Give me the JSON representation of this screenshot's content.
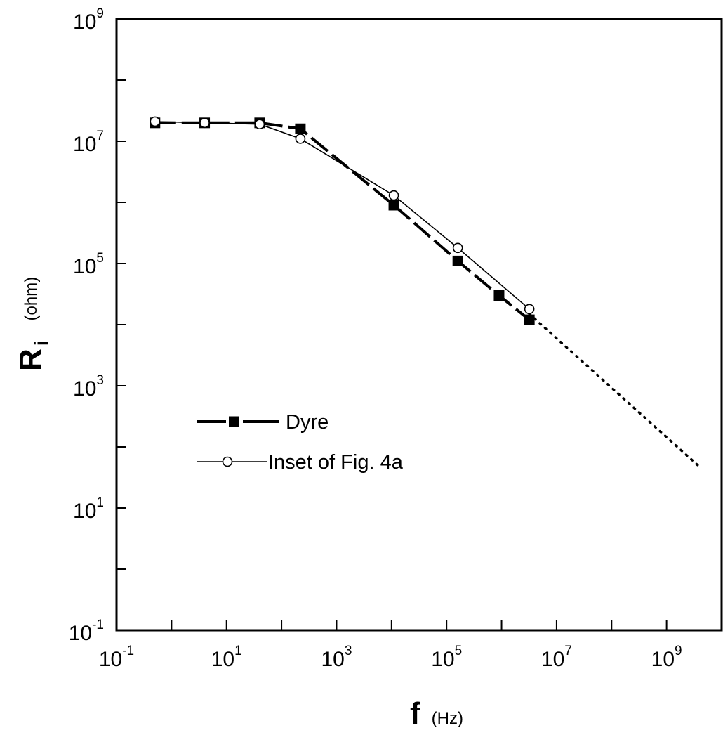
{
  "chart_data": {
    "type": "line",
    "title": "",
    "x_scale": "log",
    "y_scale": "log",
    "xlim": [
      0.1,
      10000000000
    ],
    "ylim": [
      0.1,
      1000000000
    ],
    "xlabel": {
      "main": "f",
      "unit": "(Hz)"
    },
    "ylabel": {
      "main": "R",
      "subscript": "i",
      "unit": "(ohm)"
    },
    "x_ticks": [
      {
        "base": "10",
        "exp": "-1",
        "value": 0.1
      },
      {
        "base": "10",
        "exp": "1",
        "value": 10
      },
      {
        "base": "10",
        "exp": "3",
        "value": 1000
      },
      {
        "base": "10",
        "exp": "5",
        "value": 100000
      },
      {
        "base": "10",
        "exp": "7",
        "value": 10000000
      },
      {
        "base": "10",
        "exp": "9",
        "value": 1000000000
      }
    ],
    "y_ticks": [
      {
        "base": "10",
        "exp": "-1",
        "value": 0.1
      },
      {
        "base": "10",
        "exp": "1",
        "value": 10
      },
      {
        "base": "10",
        "exp": "3",
        "value": 1000
      },
      {
        "base": "10",
        "exp": "5",
        "value": 100000
      },
      {
        "base": "10",
        "exp": "7",
        "value": 10000000
      },
      {
        "base": "10",
        "exp": "9",
        "value": 1000000000
      }
    ],
    "grid": false,
    "legend_position": "lower-left",
    "series": [
      {
        "name": "Dyre",
        "marker": "filled-square",
        "line": "dashed-thick",
        "color": "#000000",
        "x": [
          0.5,
          4,
          40,
          220,
          11000,
          160000,
          900000,
          3200000
        ],
        "y": [
          20000000,
          20000000,
          20000000,
          16000000,
          900000,
          110000,
          30000,
          12000
        ]
      },
      {
        "name": "Inset of Fig. 4a",
        "marker": "open-circle",
        "line": "solid-thin",
        "color": "#000000",
        "x": [
          0.5,
          4,
          40,
          220,
          11000,
          160000,
          3200000
        ],
        "y": [
          21000000,
          20000000,
          19000000,
          11000000,
          1300000,
          180000,
          18000
        ]
      },
      {
        "name": "",
        "marker": "none",
        "line": "dotted",
        "color": "#000000",
        "x": [
          3200000,
          4000000000
        ],
        "y": [
          15000,
          47
        ]
      }
    ]
  }
}
